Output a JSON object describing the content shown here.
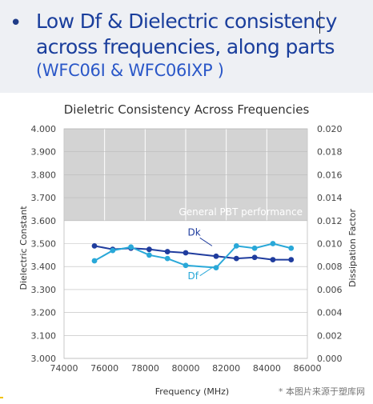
{
  "header": {
    "bullet": "•",
    "line1": "Low Df & Dielectric consistency",
    "line2": "across frequencies, along parts",
    "line3": "(WFC06I & WFC06IXP )"
  },
  "chart_data": {
    "type": "line",
    "title": "Dieletric Consistency Across Frequencies",
    "xlabel": "Frequency (MHz)",
    "ylabel_left": "Dielectric Constant",
    "ylabel_right": "Dissipation Factor",
    "xlim": [
      74000,
      86000
    ],
    "ylim_left": [
      3.0,
      4.0
    ],
    "ylim_right": [
      0.0,
      0.02
    ],
    "x_ticks": [
      "74000",
      "76000",
      "78000",
      "80000",
      "82000",
      "84000",
      "86000"
    ],
    "y_ticks_left": [
      "3.000",
      "3.100",
      "3.200",
      "3.300",
      "3.400",
      "3.500",
      "3.600",
      "3.700",
      "3.800",
      "3.900",
      "4.000"
    ],
    "y_ticks_right": [
      "0.000",
      "0.002",
      "0.004",
      "0.006",
      "0.008",
      "0.010",
      "0.012",
      "0.014",
      "0.016",
      "0.018",
      "0.020"
    ],
    "grid": true,
    "shaded_band": {
      "label": "General PBT performance",
      "y_from": 3.6,
      "y_to": 4.0,
      "color": "#d3d3d3"
    },
    "series": [
      {
        "name": "Dk",
        "axis": "left",
        "color": "#1f3c9e",
        "x": [
          75500,
          76400,
          77300,
          78200,
          79100,
          80000,
          81500,
          82500,
          83400,
          84300,
          85200
        ],
        "y": [
          3.49,
          3.475,
          3.48,
          3.475,
          3.465,
          3.46,
          3.445,
          3.435,
          3.44,
          3.43,
          3.43
        ]
      },
      {
        "name": "Df",
        "axis": "right",
        "color": "#29a8d8",
        "x": [
          75500,
          76400,
          77300,
          78200,
          79100,
          80000,
          81500,
          82500,
          83400,
          84300,
          85200
        ],
        "y": [
          0.0085,
          0.0094,
          0.0097,
          0.009,
          0.0087,
          0.0081,
          0.0079,
          0.0098,
          0.0096,
          0.01,
          0.0096
        ]
      }
    ]
  },
  "watermark": "* 本图片来源于塑库网",
  "colors": {
    "dk": "#1f3c9e",
    "df": "#29a8d8",
    "band": "#d3d3d3",
    "title_text": "#1a3e9c"
  }
}
